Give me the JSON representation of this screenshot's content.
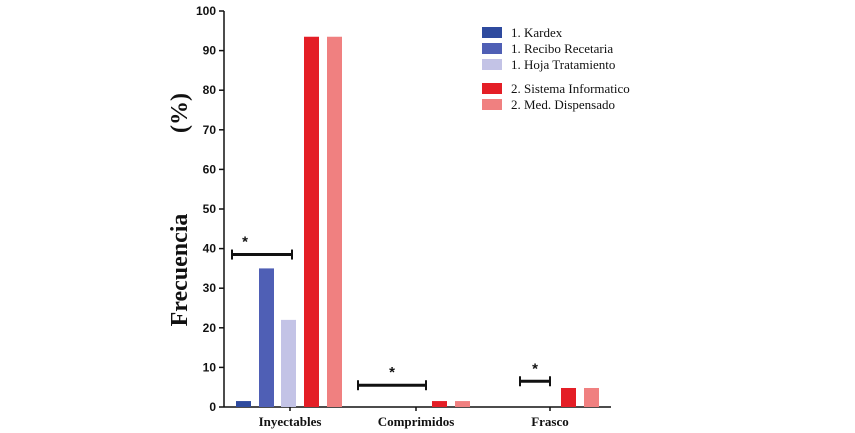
{
  "chart_data": {
    "type": "bar",
    "title": "",
    "ylabel": "Frecuencia",
    "ylabel_unit": "(%)",
    "xlabel": "",
    "ylim": [
      0,
      100
    ],
    "yticks": [
      "0",
      "10",
      "20",
      "30",
      "40",
      "50",
      "60",
      "70",
      "80",
      "90",
      "100"
    ],
    "categories": [
      "Inyectables",
      "Comprimidos",
      "Frasco"
    ],
    "series": [
      {
        "name": "1. Kardex",
        "color": "#2e4a9e",
        "values": [
          1.5,
          0,
          0
        ]
      },
      {
        "name": "1. Recibo Recetaria",
        "color": "#4f5fb5",
        "values": [
          35,
          0,
          0
        ]
      },
      {
        "name": "1. Hoja Tratamiento",
        "color": "#c3c3e6",
        "values": [
          22,
          0,
          0
        ]
      },
      {
        "name": "2. Sistema Informatico",
        "color": "#e41e26",
        "values": [
          93.5,
          1.5,
          4.8
        ]
      },
      {
        "name": "2. Med. Dispensado",
        "color": "#f08080",
        "values": [
          93.5,
          1.5,
          4.8
        ]
      }
    ],
    "annotations": [
      {
        "category": "Inyectables",
        "label": "*",
        "y": 38.5
      },
      {
        "category": "Comprimidos",
        "label": "*",
        "y": 5.5
      },
      {
        "category": "Frasco",
        "label": "*",
        "y": 6.5
      }
    ],
    "legend_position": "top-right"
  }
}
